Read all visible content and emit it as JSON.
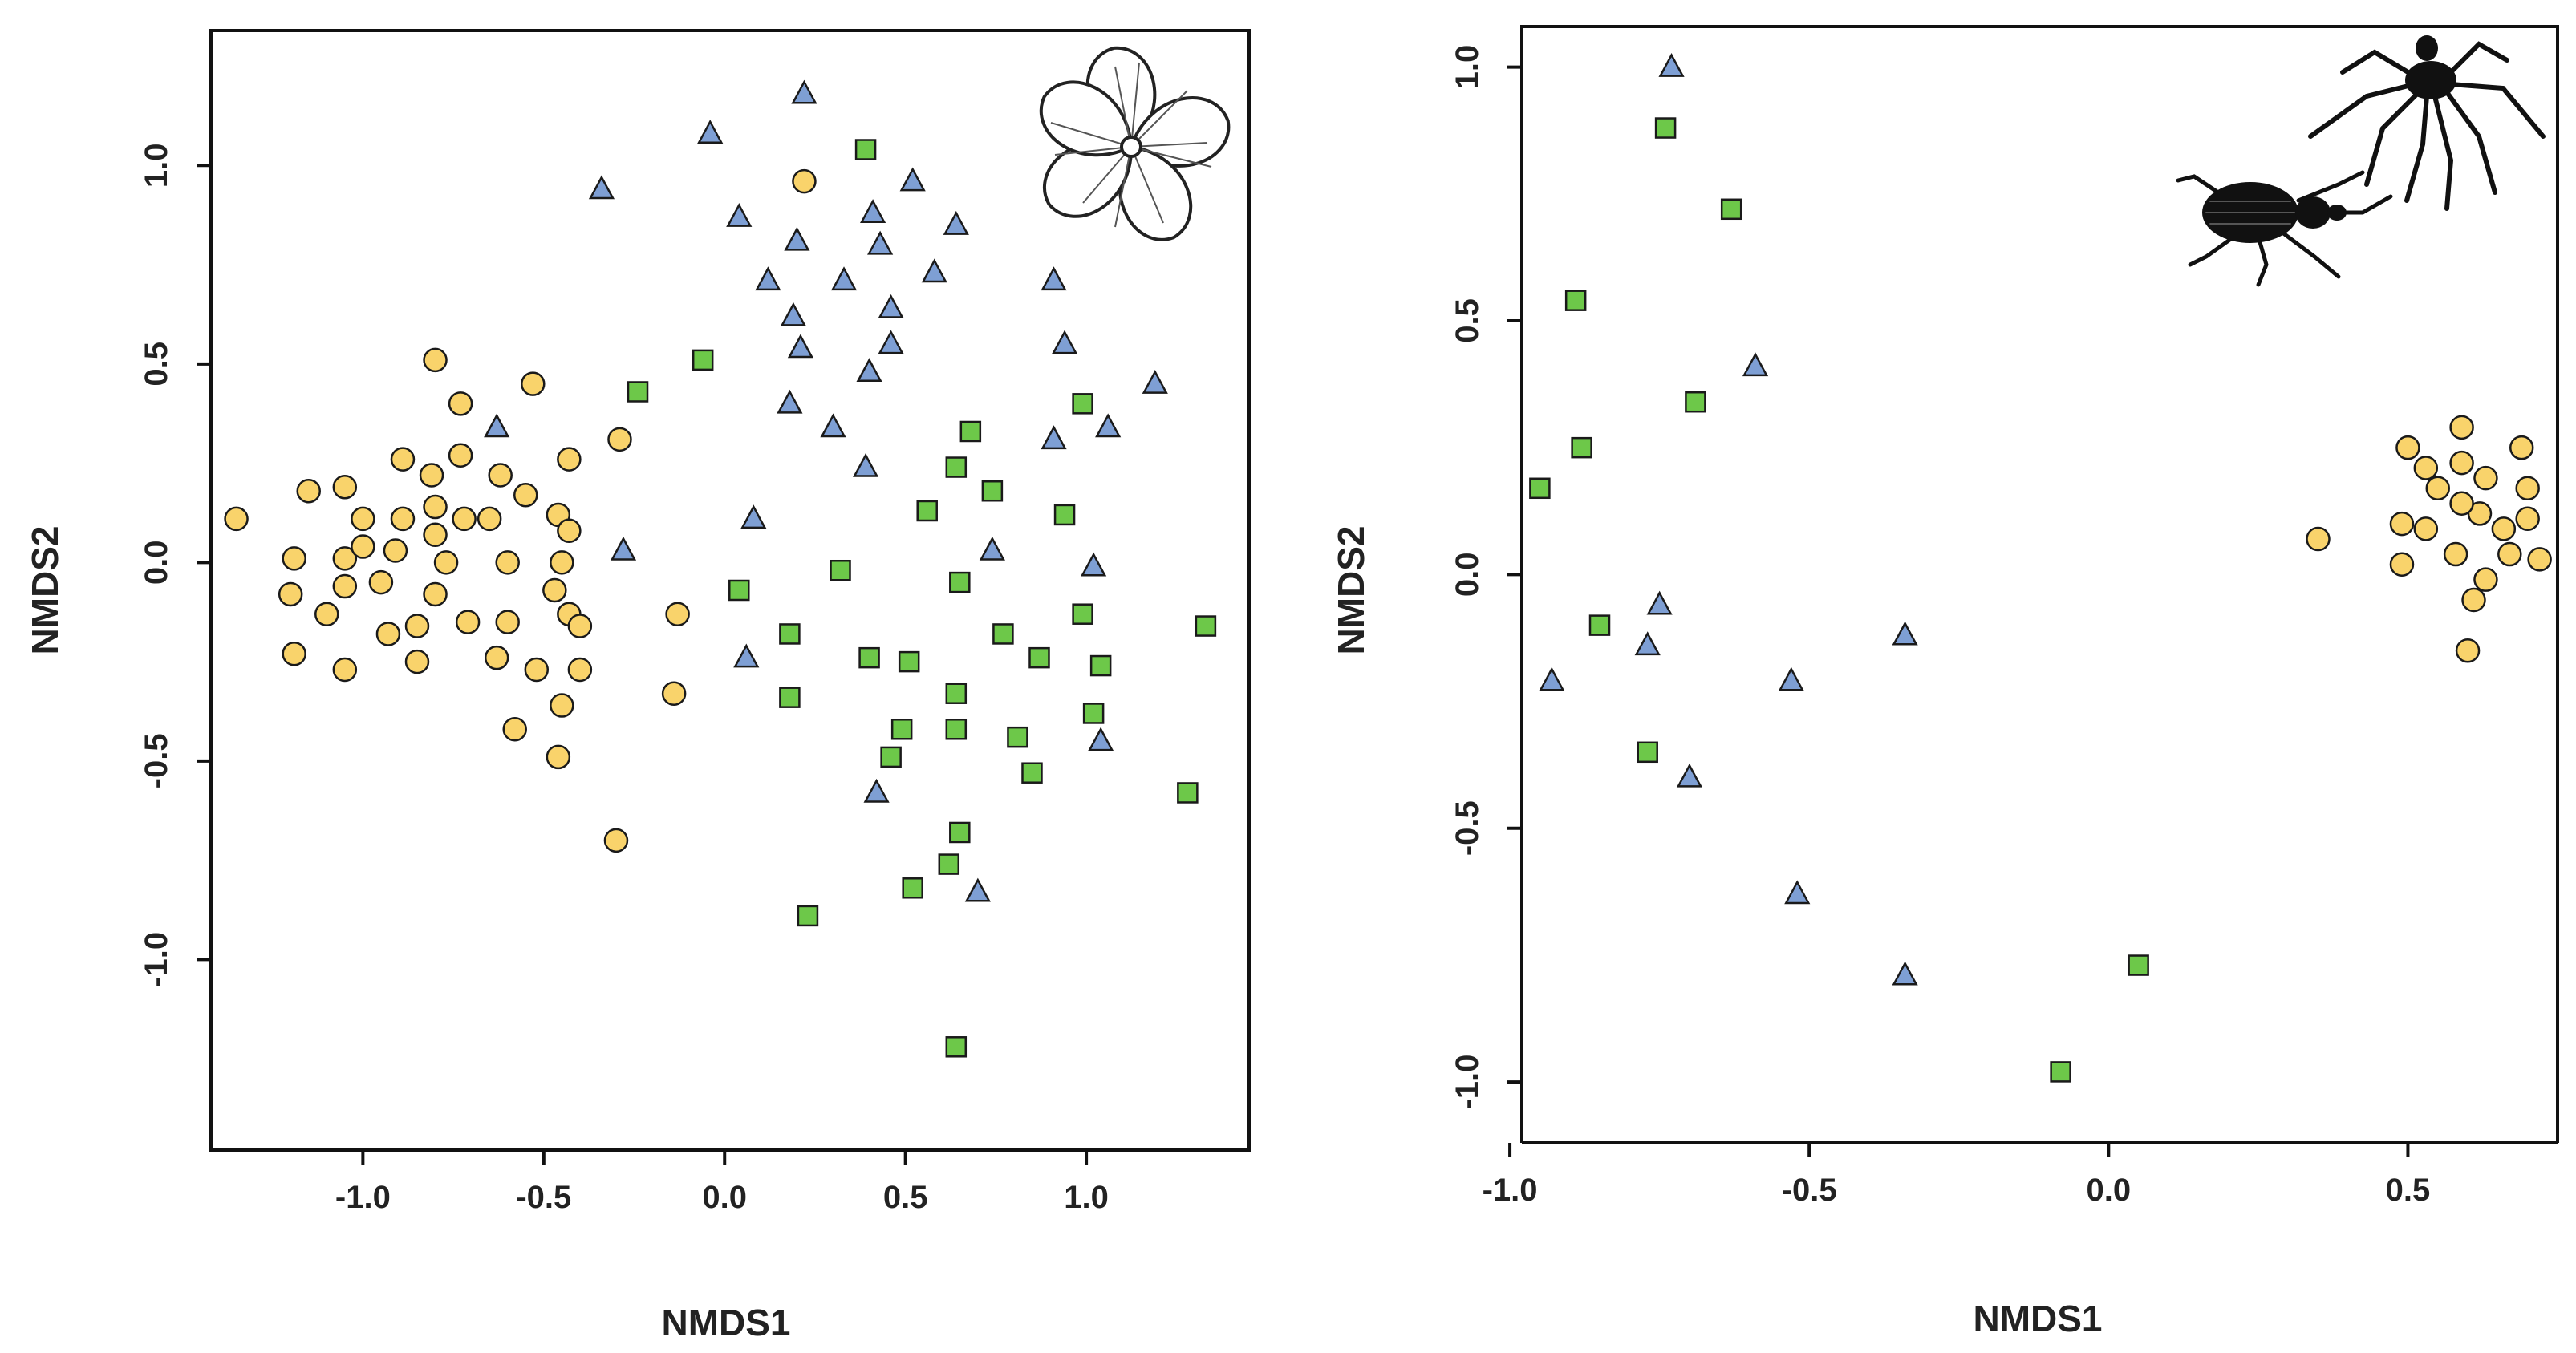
{
  "chart_data": [
    {
      "type": "scatter",
      "xlabel": "NMDS1",
      "ylabel": "NMDS2",
      "xlim": [
        -1.42,
        1.45
      ],
      "ylim": [
        -1.48,
        1.34
      ],
      "x_ticks": [
        -1.0,
        -0.5,
        0.0,
        0.5,
        1.0
      ],
      "x_tick_labels": [
        "-1.0",
        "-0.5",
        "0.0",
        "0.5",
        "1.0"
      ],
      "y_ticks": [
        -1.0,
        -0.5,
        0.0,
        0.5,
        1.0
      ],
      "y_tick_labels": [
        "-1.0",
        "-0.5",
        "0.0",
        "0.5",
        "1.0"
      ],
      "icon": "flower-icon",
      "series": [
        {
          "name": "circle-group",
          "marker": "circle",
          "color": "#f9d36b",
          "points": [
            [
              -1.35,
              0.11
            ],
            [
              -1.15,
              0.18
            ],
            [
              -1.05,
              0.19
            ],
            [
              -1.19,
              0.01
            ],
            [
              -1.2,
              -0.08
            ],
            [
              -1.1,
              -0.13
            ],
            [
              -1.19,
              -0.23
            ],
            [
              -1.05,
              -0.27
            ],
            [
              -1.05,
              0.01
            ],
            [
              -1.05,
              -0.06
            ],
            [
              -1.0,
              0.11
            ],
            [
              -1.0,
              0.04
            ],
            [
              -0.95,
              -0.05
            ],
            [
              -0.93,
              -0.18
            ],
            [
              -0.91,
              0.03
            ],
            [
              -0.89,
              0.26
            ],
            [
              -0.89,
              0.11
            ],
            [
              -0.85,
              -0.16
            ],
            [
              -0.85,
              -0.25
            ],
            [
              -0.81,
              0.22
            ],
            [
              -0.8,
              0.51
            ],
            [
              -0.8,
              0.14
            ],
            [
              -0.8,
              0.07
            ],
            [
              -0.8,
              -0.08
            ],
            [
              -0.77,
              0.0
            ],
            [
              -0.73,
              0.4
            ],
            [
              -0.73,
              0.27
            ],
            [
              -0.72,
              0.11
            ],
            [
              -0.71,
              -0.15
            ],
            [
              -0.65,
              0.11
            ],
            [
              -0.62,
              0.22
            ],
            [
              -0.6,
              0.0
            ],
            [
              -0.6,
              -0.15
            ],
            [
              -0.63,
              -0.24
            ],
            [
              -0.58,
              -0.42
            ],
            [
              -0.53,
              0.45
            ],
            [
              -0.55,
              0.17
            ],
            [
              -0.52,
              -0.27
            ],
            [
              -0.46,
              0.12
            ],
            [
              -0.47,
              -0.07
            ],
            [
              -0.45,
              0.0
            ],
            [
              -0.45,
              -0.36
            ],
            [
              -0.43,
              0.26
            ],
            [
              -0.43,
              0.08
            ],
            [
              -0.43,
              -0.13
            ],
            [
              -0.4,
              -0.16
            ],
            [
              -0.4,
              -0.27
            ],
            [
              -0.46,
              -0.49
            ],
            [
              -0.29,
              0.31
            ],
            [
              -0.3,
              -0.7
            ],
            [
              -0.13,
              -0.13
            ],
            [
              -0.14,
              -0.33
            ],
            [
              0.22,
              0.96
            ]
          ]
        },
        {
          "name": "triangle-group",
          "marker": "triangle",
          "color": "#7e9fd4",
          "points": [
            [
              -0.34,
              0.94
            ],
            [
              -0.04,
              1.08
            ],
            [
              0.22,
              1.18
            ],
            [
              0.04,
              0.87
            ],
            [
              0.2,
              0.81
            ],
            [
              0.12,
              0.71
            ],
            [
              0.19,
              0.62
            ],
            [
              0.21,
              0.54
            ],
            [
              0.18,
              0.4
            ],
            [
              0.3,
              0.34
            ],
            [
              0.33,
              0.71
            ],
            [
              0.41,
              0.88
            ],
            [
              0.43,
              0.8
            ],
            [
              0.46,
              0.64
            ],
            [
              0.46,
              0.55
            ],
            [
              0.4,
              0.48
            ],
            [
              0.52,
              0.96
            ],
            [
              0.58,
              0.73
            ],
            [
              0.64,
              0.85
            ],
            [
              0.39,
              0.24
            ],
            [
              0.91,
              0.71
            ],
            [
              0.94,
              0.55
            ],
            [
              0.91,
              0.31
            ],
            [
              1.06,
              0.34
            ],
            [
              1.19,
              0.45
            ],
            [
              0.74,
              0.03
            ],
            [
              1.02,
              -0.01
            ],
            [
              1.04,
              -0.45
            ],
            [
              0.42,
              -0.58
            ],
            [
              0.7,
              -0.83
            ],
            [
              0.08,
              0.11
            ],
            [
              0.06,
              -0.24
            ],
            [
              -0.63,
              0.34
            ],
            [
              -0.28,
              0.03
            ]
          ]
        },
        {
          "name": "square-group",
          "marker": "square",
          "color": "#6dc849",
          "points": [
            [
              0.39,
              1.04
            ],
            [
              -0.06,
              0.51
            ],
            [
              -0.24,
              0.43
            ],
            [
              0.68,
              0.33
            ],
            [
              0.99,
              0.4
            ],
            [
              0.64,
              0.24
            ],
            [
              0.74,
              0.18
            ],
            [
              0.56,
              0.13
            ],
            [
              0.94,
              0.12
            ],
            [
              0.32,
              -0.02
            ],
            [
              0.65,
              -0.05
            ],
            [
              0.04,
              -0.07
            ],
            [
              0.18,
              -0.18
            ],
            [
              0.77,
              -0.18
            ],
            [
              0.99,
              -0.13
            ],
            [
              1.33,
              -0.16
            ],
            [
              0.4,
              -0.24
            ],
            [
              0.51,
              -0.25
            ],
            [
              0.87,
              -0.24
            ],
            [
              1.04,
              -0.26
            ],
            [
              0.18,
              -0.34
            ],
            [
              0.64,
              -0.33
            ],
            [
              1.02,
              -0.38
            ],
            [
              0.49,
              -0.42
            ],
            [
              0.64,
              -0.42
            ],
            [
              0.81,
              -0.44
            ],
            [
              0.46,
              -0.49
            ],
            [
              0.85,
              -0.53
            ],
            [
              1.28,
              -0.58
            ],
            [
              0.65,
              -0.68
            ],
            [
              0.62,
              -0.76
            ],
            [
              0.52,
              -0.82
            ],
            [
              0.23,
              -0.89
            ],
            [
              0.64,
              -1.22
            ]
          ]
        }
      ]
    },
    {
      "type": "scatter",
      "xlabel": "NMDS1",
      "ylabel": "NMDS2",
      "xlim": [
        -0.98,
        0.75
      ],
      "ylim": [
        -1.12,
        1.08
      ],
      "x_ticks": [
        -1.0,
        -0.5,
        0.0,
        0.5
      ],
      "x_tick_labels": [
        "-1.0",
        "-0.5",
        "0.0",
        "0.5"
      ],
      "y_ticks": [
        -1.0,
        -0.5,
        0.0,
        0.5,
        1.0
      ],
      "y_tick_labels": [
        "-1.0",
        "-0.5",
        "0.0",
        "0.5",
        "1.0"
      ],
      "icon": "insects-icon",
      "series": [
        {
          "name": "circle-group",
          "marker": "circle",
          "color": "#f9d36b",
          "points": [
            [
              0.35,
              0.07
            ],
            [
              0.49,
              0.1
            ],
            [
              0.49,
              0.02
            ],
            [
              0.5,
              0.25
            ],
            [
              0.53,
              0.21
            ],
            [
              0.53,
              0.09
            ],
            [
              0.55,
              0.17
            ],
            [
              0.58,
              0.04
            ],
            [
              0.59,
              0.29
            ],
            [
              0.59,
              0.22
            ],
            [
              0.6,
              -0.15
            ],
            [
              0.61,
              -0.05
            ],
            [
              0.62,
              0.12
            ],
            [
              0.63,
              0.19
            ],
            [
              0.63,
              -0.01
            ],
            [
              0.66,
              0.09
            ],
            [
              0.67,
              0.04
            ],
            [
              0.69,
              0.25
            ],
            [
              0.7,
              0.17
            ],
            [
              0.7,
              0.11
            ],
            [
              0.72,
              0.03
            ],
            [
              0.59,
              0.14
            ]
          ]
        },
        {
          "name": "triangle-group",
          "marker": "triangle",
          "color": "#7e9fd4",
          "points": [
            [
              -0.73,
              1.0
            ],
            [
              -0.59,
              0.41
            ],
            [
              -0.75,
              -0.06
            ],
            [
              -0.77,
              -0.14
            ],
            [
              -0.93,
              -0.21
            ],
            [
              -0.7,
              -0.4
            ],
            [
              -0.53,
              -0.21
            ],
            [
              -0.34,
              -0.12
            ],
            [
              -0.52,
              -0.63
            ],
            [
              -0.34,
              -0.79
            ]
          ]
        },
        {
          "name": "square-group",
          "marker": "square",
          "color": "#6dc849",
          "points": [
            [
              -0.74,
              0.88
            ],
            [
              -0.63,
              0.72
            ],
            [
              -0.89,
              0.54
            ],
            [
              -0.69,
              0.34
            ],
            [
              -0.88,
              0.25
            ],
            [
              -0.95,
              0.17
            ],
            [
              -0.85,
              -0.1
            ],
            [
              -0.77,
              -0.35
            ],
            [
              0.05,
              -0.77
            ],
            [
              -0.08,
              -0.98
            ]
          ]
        }
      ]
    }
  ]
}
